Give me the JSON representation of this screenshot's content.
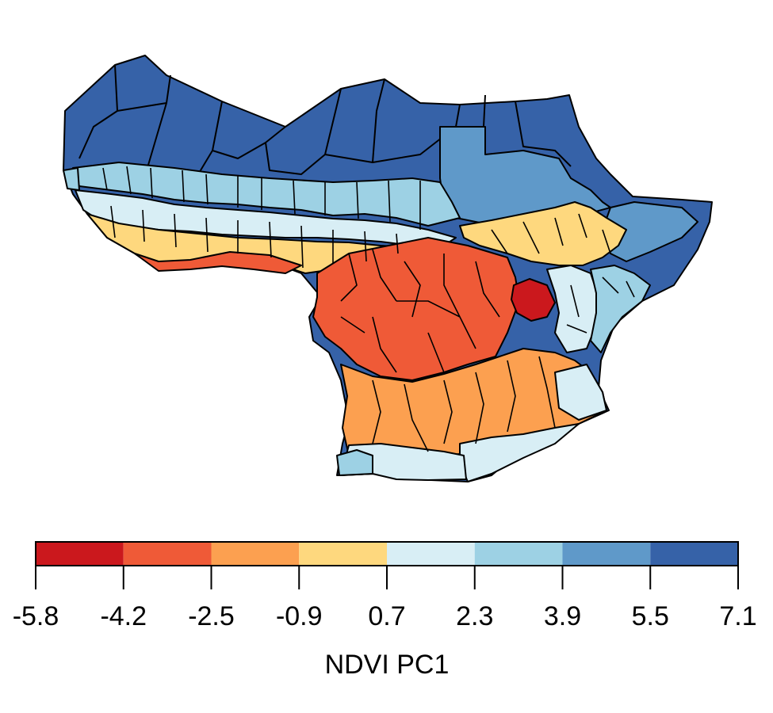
{
  "legend": {
    "title": "NDVI PC1",
    "breaks": [
      "-5.8",
      "-4.2",
      "-2.5",
      "-0.9",
      "0.7",
      "2.3",
      "3.9",
      "5.5",
      "7.1"
    ],
    "colors": [
      "#cb181d",
      "#ef5a37",
      "#fca050",
      "#fed87e",
      "#d8eef5",
      "#9dd1e4",
      "#5f99c9",
      "#3662a8"
    ]
  },
  "map": {
    "region": "Sub-Saharan Africa (West, Central and East)",
    "fill_classes": {
      "north_sahara": 7,
      "sudan_sahel_north": 6,
      "sahel_band": 5,
      "transition_band": 4,
      "savanna_band": 3,
      "central_basin": 1,
      "southern_woodland": 2,
      "southern_edge": 4,
      "kenya_lowland": 5,
      "ethiopia_highland": 3,
      "rwanda_burundi": 0
    }
  }
}
